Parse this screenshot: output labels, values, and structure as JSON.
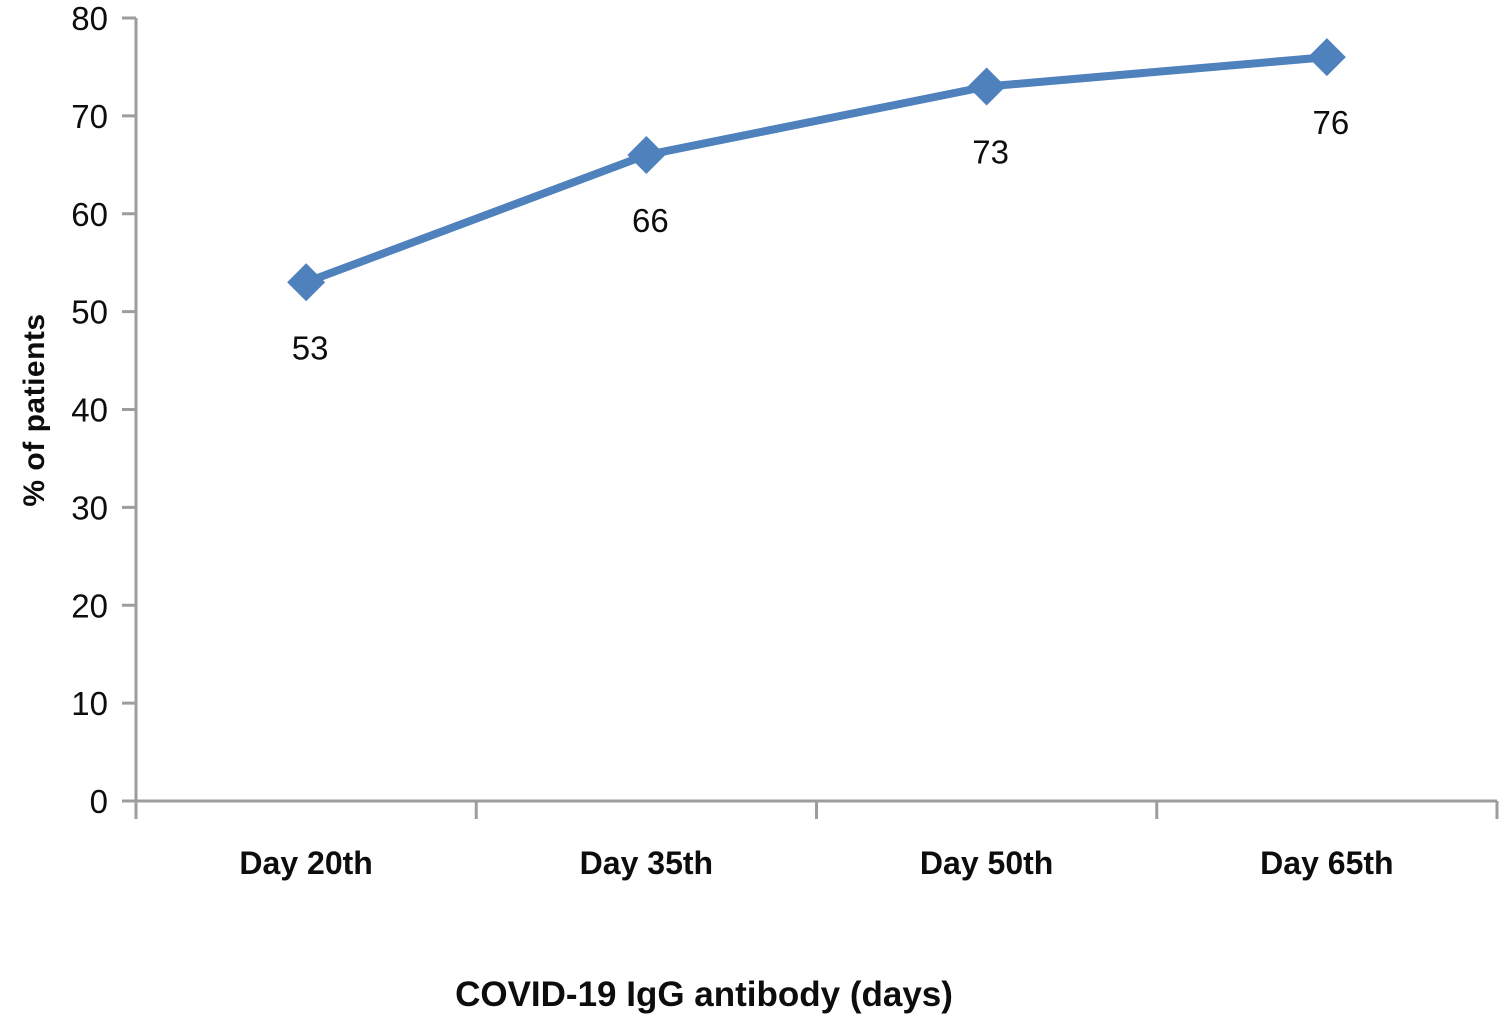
{
  "chart_data": {
    "type": "line",
    "title": "",
    "xlabel": "COVID-19 IgG antibody (days)",
    "ylabel": "% of patients",
    "categories": [
      "Day 20th",
      "Day 35th",
      "Day 50th",
      "Day 65th"
    ],
    "series": [
      {
        "name": "% of patients",
        "values": [
          53,
          66,
          73,
          76
        ]
      }
    ],
    "data_labels": [
      "53",
      "66",
      "73",
      "76"
    ],
    "yticks": [
      0,
      10,
      20,
      30,
      40,
      50,
      60,
      70,
      80
    ],
    "ylim": [
      0,
      80
    ],
    "grid": "off",
    "legend": "none",
    "marker": "diamond",
    "colors": {
      "line": "#4F81BD",
      "marker": "#4F81BD",
      "axis": "#9D9D9D",
      "text": "#0d0d0d"
    }
  }
}
